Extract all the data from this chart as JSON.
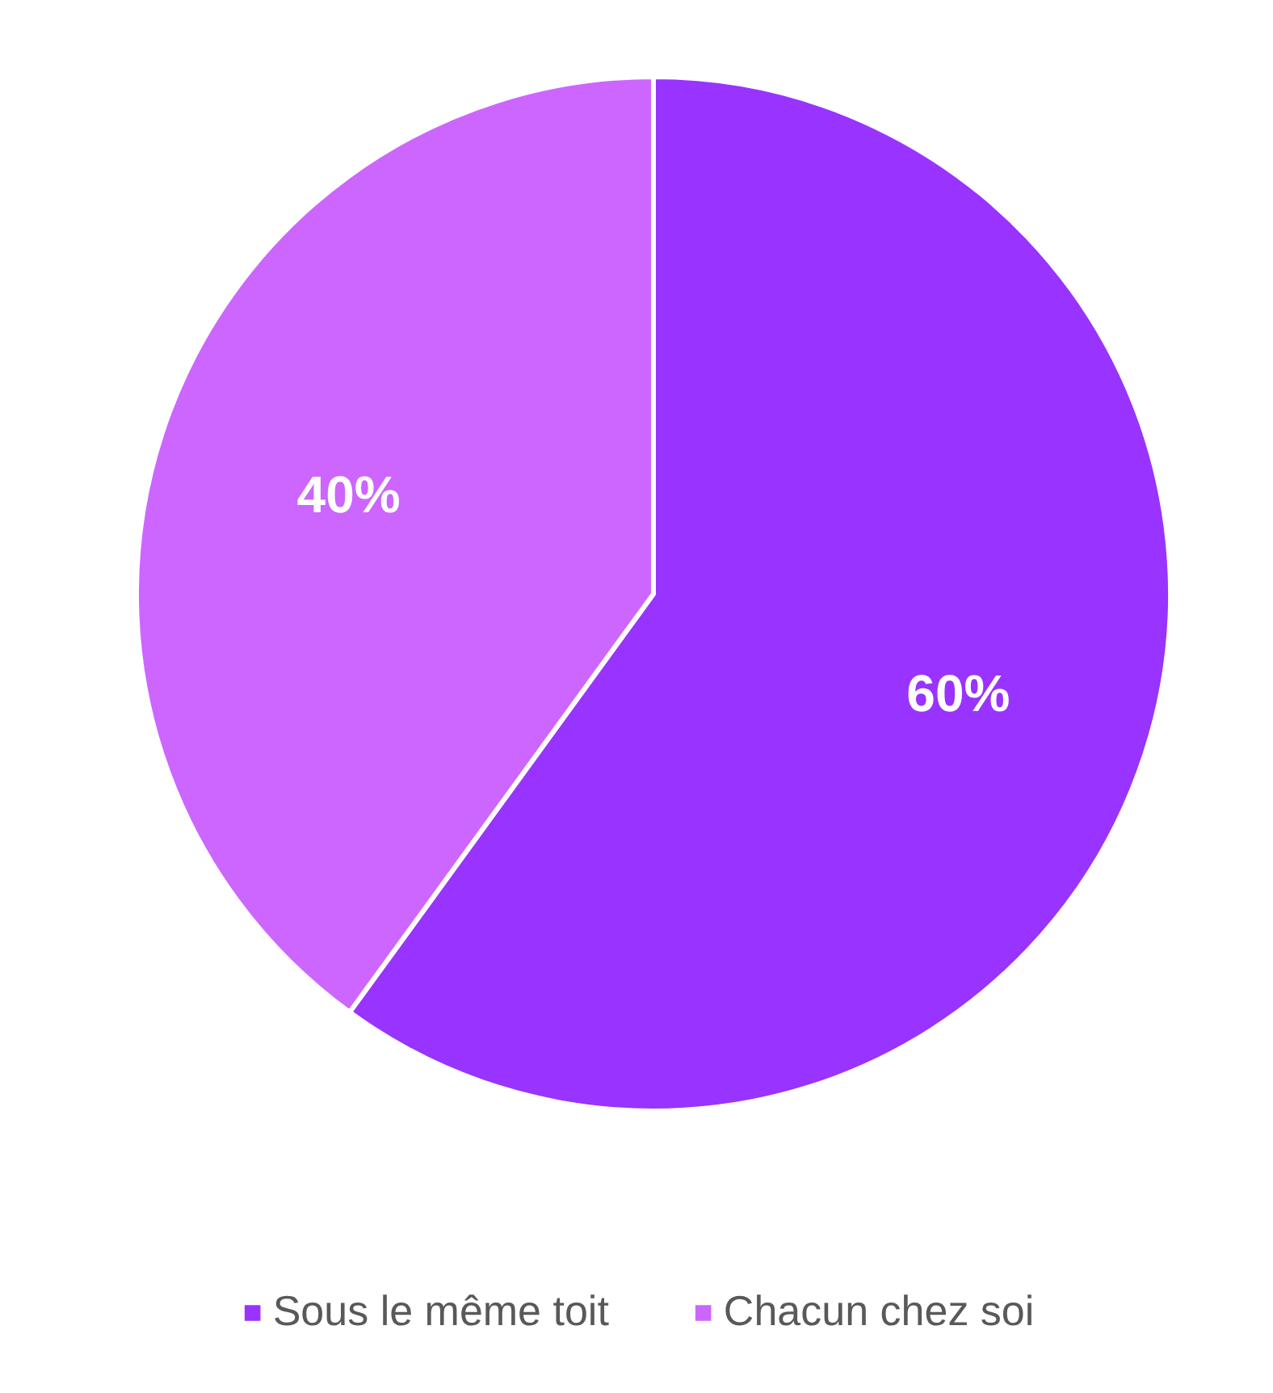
{
  "chart_data": {
    "type": "pie",
    "categories": [
      "Sous le même toit",
      "Chacun chez soi"
    ],
    "values": [
      60,
      40
    ],
    "colors": [
      "#9933ff",
      "#cc66ff"
    ],
    "value_labels": [
      "60%",
      "40%"
    ],
    "legend": "bottom"
  }
}
